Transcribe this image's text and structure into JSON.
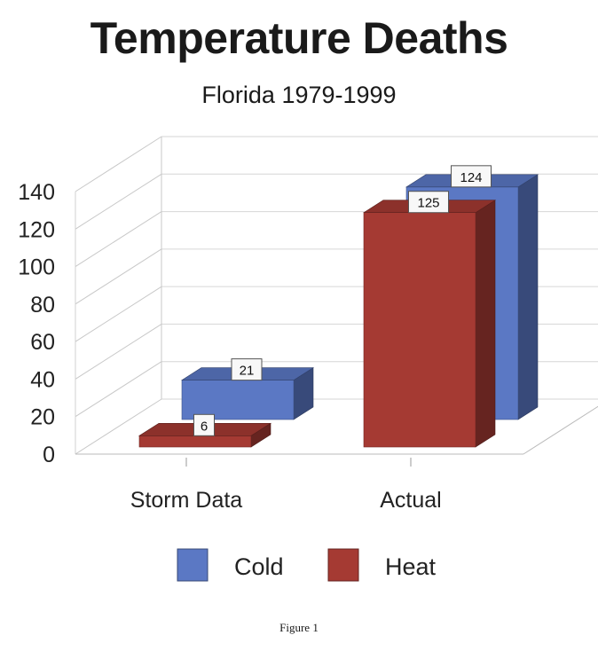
{
  "chart_data": {
    "type": "bar",
    "title": "Temperature Deaths",
    "subtitle": "Florida  1979-1999",
    "categories": [
      "Storm Data",
      "Actual"
    ],
    "series": [
      {
        "name": "Cold",
        "values": [
          21,
          124
        ],
        "color": "#5b78c4"
      },
      {
        "name": "Heat",
        "values": [
          6,
          125
        ],
        "color": "#a53a33"
      }
    ],
    "yticks": [
      0,
      20,
      40,
      60,
      80,
      100,
      120,
      140
    ],
    "ylim": [
      0,
      140
    ],
    "grid": true,
    "three_d": true,
    "legend": "bottom"
  },
  "caption": "Figure 1"
}
